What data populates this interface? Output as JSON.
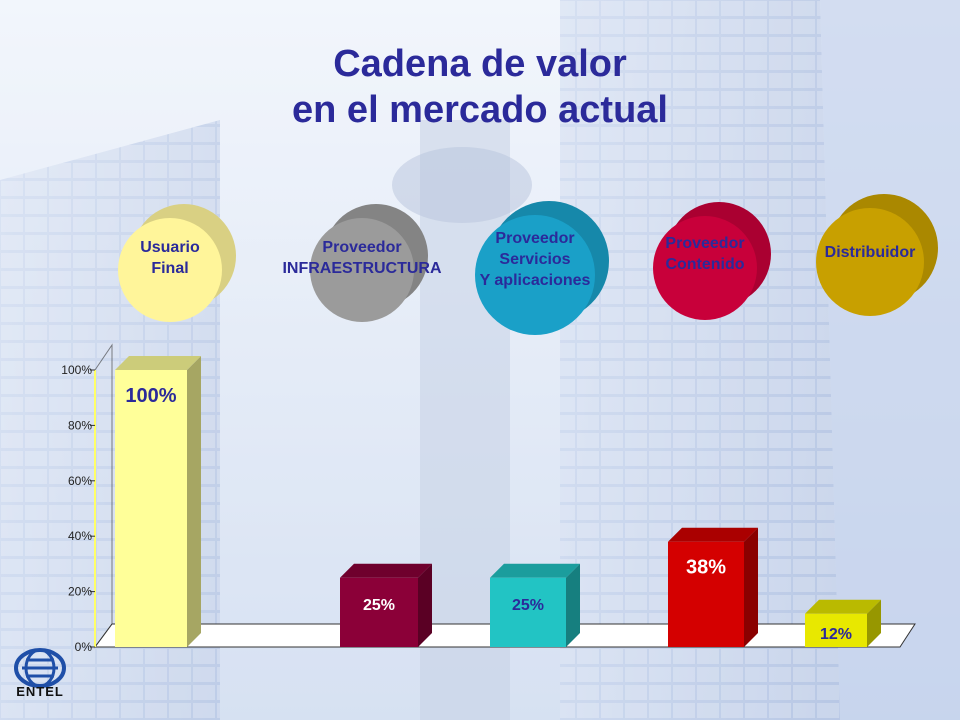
{
  "slide": {
    "title_line1": "Cadena de valor",
    "title_line2": "en el mercado actual"
  },
  "chain": [
    {
      "label_lines": [
        "Usuario",
        "Final"
      ],
      "color": "#fff59a",
      "text_color": "#2b2a9a"
    },
    {
      "label_lines": [
        "Proveedor",
        "INFRAESTRUCTURA"
      ],
      "color": "#9b9b9b",
      "text_color": "#2b2a9a"
    },
    {
      "label_lines": [
        "Proveedor",
        "Servicios",
        "Y aplicaciones"
      ],
      "color": "#1aa0c8",
      "text_color": "#2b2a9a"
    },
    {
      "label_lines": [
        "Proveedor",
        "Contenido"
      ],
      "color": "#c8003a",
      "text_color": "#2b2a9a"
    },
    {
      "label_lines": [
        "Distribuidor"
      ],
      "color": "#c8a000",
      "text_color": "#2b2a9a"
    }
  ],
  "chart_data": {
    "type": "bar",
    "categories": [
      "Usuario Final",
      "Proveedor INFRAESTRUCTURA",
      "Proveedor Servicios Y aplicaciones",
      "Proveedor Contenido",
      "Distribuidor"
    ],
    "values": [
      100,
      25,
      25,
      38,
      12
    ],
    "data_labels": [
      "100%",
      "25%",
      "25%",
      "38%",
      "12%"
    ],
    "colors": [
      "#ffff99",
      "#8b0038",
      "#22c4c4",
      "#d40000",
      "#e8e800"
    ],
    "label_colors": [
      "#2b2a9a",
      "#ffffff",
      "#2b2a9a",
      "#ffffff",
      "#2b2a9a"
    ],
    "yticks": [
      "0%",
      "20%",
      "40%",
      "60%",
      "80%",
      "100%"
    ],
    "ylim": [
      0,
      100
    ],
    "grid": false,
    "legend": "none",
    "title": "",
    "xlabel": "",
    "ylabel": ""
  },
  "logo": {
    "text": "ENTEL"
  }
}
